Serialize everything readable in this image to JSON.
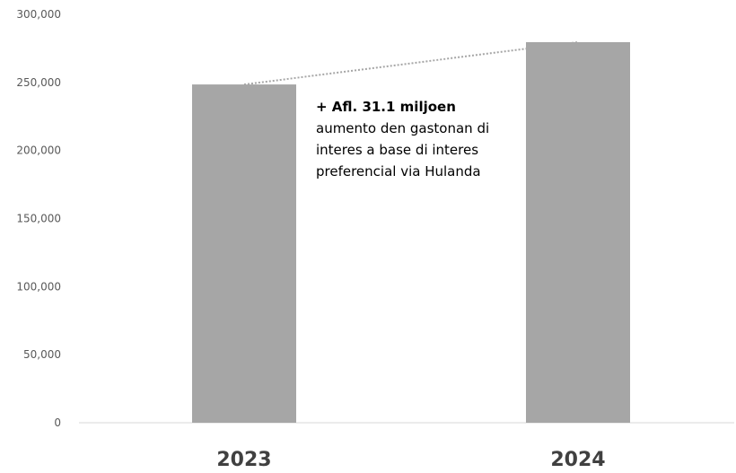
{
  "chart_data": {
    "type": "bar",
    "categories": [
      "2023",
      "2024"
    ],
    "values": [
      248500,
      279600
    ],
    "ylim": [
      0,
      300000
    ],
    "yticks": [
      "0",
      "50,000",
      "100,000",
      "150,000",
      "200,000",
      "250,000",
      "300,000"
    ],
    "ytick_values": [
      0,
      50000,
      100000,
      150000,
      200000,
      250000,
      300000
    ],
    "grid": false,
    "bar_color": "#a6a6a6",
    "connector_color": "#a6a6a6",
    "annotation": {
      "headline": "+ Afl. 31.1 miljoen",
      "lines": [
        "aumento den gastonan di",
        "interes a base di interes",
        "preferencial via Hulanda"
      ]
    }
  }
}
